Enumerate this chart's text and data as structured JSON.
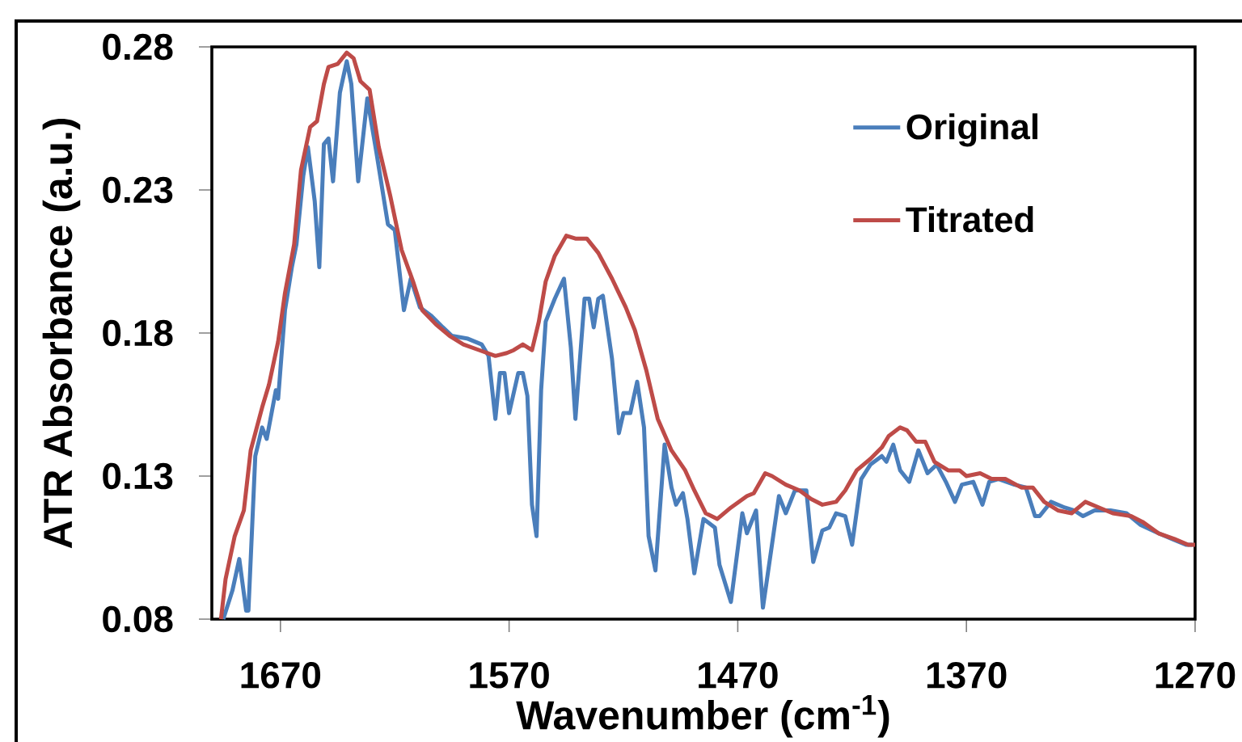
{
  "chart_data": {
    "type": "line",
    "xlabel": "Wavenumber (cm$^{-1}$)",
    "ylabel": "ATR Absorbance (a.u.)",
    "xlim": [
      1700,
      1270
    ],
    "ylim": [
      0.08,
      0.28
    ],
    "xticks": [
      1670,
      1570,
      1470,
      1370,
      1270
    ],
    "yticks": [
      0.08,
      0.13,
      0.18,
      0.23,
      0.28
    ],
    "legend": "top right",
    "line_style": "solid",
    "series": [
      {
        "name": "Original",
        "color": "#4a7ebb",
        "x": [
          1695,
          1691,
          1688,
          1685,
          1684,
          1681,
          1678,
          1676,
          1672,
          1671,
          1668,
          1665,
          1663,
          1660,
          1658,
          1655,
          1653,
          1651,
          1649,
          1647,
          1644,
          1641,
          1639,
          1636,
          1632,
          1628,
          1623,
          1620,
          1616,
          1613,
          1609,
          1604,
          1599,
          1595,
          1588,
          1582,
          1579,
          1576,
          1574,
          1572,
          1570,
          1566,
          1564,
          1562,
          1560,
          1558,
          1556,
          1554,
          1550,
          1546,
          1543,
          1541,
          1537,
          1535,
          1533,
          1531,
          1529,
          1525,
          1522,
          1520,
          1517,
          1514,
          1511,
          1509,
          1506,
          1502,
          1499,
          1497,
          1494,
          1492,
          1489,
          1485,
          1480,
          1478,
          1473,
          1468,
          1466,
          1462,
          1459,
          1452,
          1449,
          1445,
          1440,
          1437,
          1433,
          1430,
          1427,
          1423,
          1420,
          1416,
          1412,
          1407,
          1405,
          1402,
          1399,
          1395,
          1391,
          1387,
          1383,
          1379,
          1375,
          1372,
          1367,
          1363,
          1360,
          1356,
          1349,
          1344,
          1340,
          1338,
          1333,
          1327,
          1323,
          1319,
          1314,
          1307,
          1300,
          1294,
          1286,
          1280,
          1274,
          1271
        ],
        "values": [
          0.08,
          0.09,
          0.101,
          0.083,
          0.083,
          0.137,
          0.147,
          0.143,
          0.16,
          0.157,
          0.188,
          0.203,
          0.211,
          0.235,
          0.245,
          0.226,
          0.203,
          0.246,
          0.248,
          0.233,
          0.264,
          0.275,
          0.267,
          0.233,
          0.262,
          0.243,
          0.218,
          0.216,
          0.188,
          0.199,
          0.189,
          0.186,
          0.182,
          0.179,
          0.178,
          0.176,
          0.172,
          0.15,
          0.166,
          0.166,
          0.152,
          0.166,
          0.166,
          0.158,
          0.12,
          0.109,
          0.16,
          0.184,
          0.192,
          0.199,
          0.175,
          0.15,
          0.192,
          0.192,
          0.182,
          0.192,
          0.193,
          0.171,
          0.145,
          0.152,
          0.152,
          0.163,
          0.147,
          0.109,
          0.097,
          0.141,
          0.126,
          0.12,
          0.124,
          0.115,
          0.096,
          0.115,
          0.112,
          0.099,
          0.086,
          0.117,
          0.11,
          0.118,
          0.084,
          0.123,
          0.117,
          0.125,
          0.125,
          0.1,
          0.111,
          0.112,
          0.117,
          0.116,
          0.106,
          0.129,
          0.134,
          0.137,
          0.135,
          0.141,
          0.132,
          0.128,
          0.139,
          0.131,
          0.134,
          0.128,
          0.121,
          0.127,
          0.128,
          0.12,
          0.128,
          0.129,
          0.127,
          0.126,
          0.116,
          0.116,
          0.121,
          0.119,
          0.118,
          0.116,
          0.118,
          0.118,
          0.117,
          0.113,
          0.11,
          0.108,
          0.106,
          0.106
        ]
      },
      {
        "name": "Titrated",
        "color": "#be4b48",
        "x": [
          1696,
          1694,
          1690,
          1686,
          1683,
          1678,
          1675,
          1671,
          1668,
          1664,
          1661,
          1657,
          1654,
          1651,
          1649,
          1645,
          1641,
          1638,
          1635,
          1631,
          1627,
          1622,
          1617,
          1612,
          1608,
          1602,
          1596,
          1590,
          1583,
          1576,
          1571,
          1568,
          1564,
          1560,
          1557,
          1554,
          1550,
          1545,
          1541,
          1536,
          1531,
          1525,
          1519,
          1515,
          1510,
          1505,
          1499,
          1493,
          1489,
          1484,
          1479,
          1473,
          1466,
          1463,
          1458,
          1455,
          1449,
          1443,
          1438,
          1433,
          1427,
          1423,
          1418,
          1412,
          1407,
          1404,
          1399,
          1396,
          1392,
          1388,
          1384,
          1378,
          1373,
          1370,
          1364,
          1359,
          1353,
          1346,
          1341,
          1336,
          1330,
          1324,
          1318,
          1312,
          1306,
          1298,
          1293,
          1286,
          1279,
          1273,
          1270
        ],
        "values": [
          0.08,
          0.094,
          0.109,
          0.118,
          0.139,
          0.154,
          0.162,
          0.177,
          0.194,
          0.211,
          0.237,
          0.252,
          0.254,
          0.267,
          0.273,
          0.274,
          0.278,
          0.276,
          0.268,
          0.265,
          0.245,
          0.228,
          0.209,
          0.198,
          0.188,
          0.183,
          0.179,
          0.176,
          0.174,
          0.172,
          0.173,
          0.174,
          0.176,
          0.174,
          0.184,
          0.198,
          0.207,
          0.214,
          0.213,
          0.213,
          0.208,
          0.199,
          0.189,
          0.181,
          0.167,
          0.15,
          0.139,
          0.132,
          0.125,
          0.117,
          0.115,
          0.119,
          0.123,
          0.124,
          0.131,
          0.13,
          0.127,
          0.125,
          0.122,
          0.12,
          0.121,
          0.125,
          0.132,
          0.136,
          0.14,
          0.144,
          0.147,
          0.146,
          0.142,
          0.142,
          0.135,
          0.132,
          0.132,
          0.13,
          0.131,
          0.129,
          0.129,
          0.126,
          0.126,
          0.121,
          0.118,
          0.117,
          0.121,
          0.119,
          0.117,
          0.116,
          0.114,
          0.11,
          0.108,
          0.106,
          0.106
        ]
      }
    ]
  }
}
